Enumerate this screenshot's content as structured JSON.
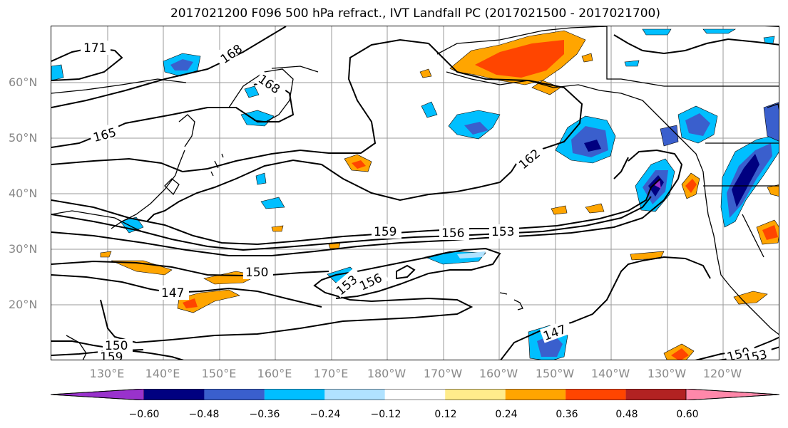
{
  "title": "2017021200 F096 500 hPa refract., IVT Landfall PC (2017021500 - 2017021700)",
  "lat_labels": [
    "60°N",
    "50°N",
    "40°N",
    "30°N",
    "20°N"
  ],
  "lon_labels": [
    "130°E",
    "140°E",
    "150°E",
    "160°E",
    "170°E",
    "180°W",
    "170°W",
    "160°W",
    "150°W",
    "140°W",
    "130°W",
    "120°W"
  ],
  "contour_labels": [
    "171",
    "168",
    "168",
    "165",
    "162",
    "159",
    "156",
    "153",
    "150",
    "147",
    "153",
    "156",
    "147",
    "150",
    "159",
    "150",
    "153"
  ],
  "colorbar": {
    "ticks": [
      "−0.60",
      "−0.48",
      "−0.36",
      "−0.24",
      "−0.12",
      "0.12",
      "0.24",
      "0.36",
      "0.48",
      "0.60"
    ],
    "colors": [
      "#9932cc",
      "#000080",
      "#3a5fcd",
      "#00bfff",
      "#b0e2ff",
      "#ffffff",
      "#ffec8b",
      "#ffa500",
      "#ff4500",
      "#b22222",
      "#ff88aa"
    ]
  }
}
